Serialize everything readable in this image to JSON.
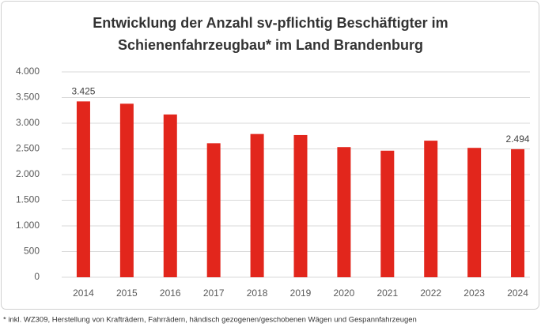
{
  "chart_data": {
    "type": "bar",
    "title": [
      "Entwicklung der Anzahl sv-pflichtig Beschäftigter im",
      "Schienenfahrzeugbau* im Land Brandenburg"
    ],
    "categories": [
      "2014",
      "2015",
      "2016",
      "2017",
      "2018",
      "2019",
      "2020",
      "2021",
      "2022",
      "2023",
      "2024"
    ],
    "values": [
      3425,
      3380,
      3170,
      2610,
      2790,
      2770,
      2535,
      2465,
      2660,
      2520,
      2494
    ],
    "value_labels": [
      "3.425",
      null,
      null,
      null,
      null,
      null,
      null,
      null,
      null,
      null,
      "2.494"
    ],
    "color": "#e2261c",
    "ylim": [
      0,
      4000
    ],
    "yticks": [
      0,
      500,
      {
        "value": 1000,
        "label": "1.000"
      },
      {
        "value": 1500,
        "label": "1.500"
      },
      {
        "value": 2000,
        "label": "2.000"
      },
      {
        "value": 2500,
        "label": "2.500"
      },
      {
        "value": 3000,
        "label": "3.000"
      },
      {
        "value": 3500,
        "label": "3.500"
      },
      {
        "value": 4000,
        "label": "4.000"
      }
    ],
    "grid": true,
    "footnote": "* inkl. WZ309, Herstellung von Krafträdern, Fahrrädern,    händisch gezogenen/geschobenen Wägen und Gespannfahrzeugen"
  }
}
